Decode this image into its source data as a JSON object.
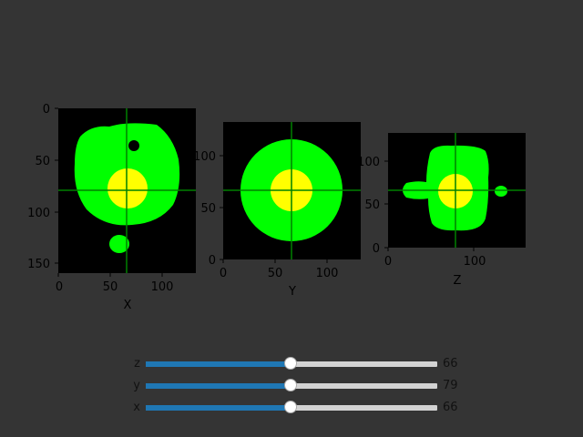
{
  "figure": {
    "background": "#343434",
    "colors": {
      "image_bg": "#000000",
      "body": "#00ff00",
      "core": "#ffff00",
      "crosshair": "#008000"
    }
  },
  "panels": [
    {
      "axis_label": "X",
      "xticks": [
        "0",
        "50",
        "100"
      ],
      "yticks": [
        "0",
        "50",
        "100",
        "150"
      ],
      "image_extent": {
        "width": 133,
        "height": 160
      },
      "crosshair": {
        "x": 66,
        "y": 79
      },
      "y_origin": "top"
    },
    {
      "axis_label": "Y",
      "xticks": [
        "0",
        "50",
        "100"
      ],
      "yticks": [
        "0",
        "50",
        "100"
      ],
      "image_extent": {
        "width": 133,
        "height": 133
      },
      "crosshair": {
        "x": 66,
        "y": 66
      },
      "y_origin": "bottom"
    },
    {
      "axis_label": "Z",
      "xticks": [
        "0",
        "100"
      ],
      "yticks": [
        "0",
        "50",
        "100"
      ],
      "image_extent": {
        "width": 160,
        "height": 133
      },
      "crosshair": {
        "x": 79,
        "y": 66
      },
      "y_origin": "bottom"
    }
  ],
  "sliders": [
    {
      "label": "z",
      "value": "66",
      "fraction": 0.5
    },
    {
      "label": "y",
      "value": "79",
      "fraction": 0.5
    },
    {
      "label": "x",
      "value": "66",
      "fraction": 0.5
    }
  ]
}
